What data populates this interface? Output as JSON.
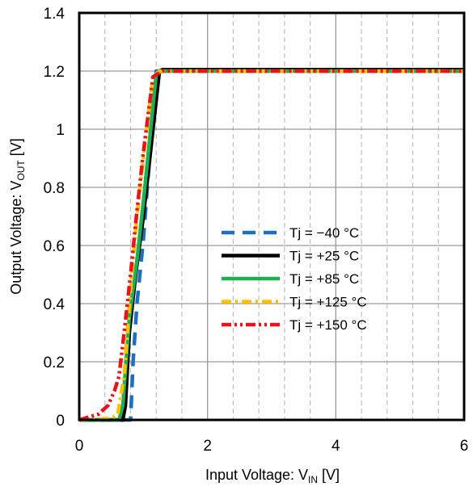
{
  "chart_data": {
    "type": "line",
    "xlabel": {
      "main": "Input Voltage: V",
      "sub": "IN",
      "unit": " [V]"
    },
    "ylabel": {
      "main": "Output Voltage: V",
      "sub": "OUT",
      "unit": " [V]"
    },
    "xlim": [
      0,
      6
    ],
    "ylim": [
      0,
      1.4
    ],
    "x_ticks": [
      "0",
      "2",
      "4",
      "6"
    ],
    "y_ticks": [
      "0",
      "0.2",
      "0.4",
      "0.6",
      "0.8",
      "1",
      "1.2",
      "1.4"
    ],
    "grid": {
      "major": true,
      "minor_x": true
    },
    "legend_position": "center-right",
    "series": [
      {
        "name": "Tj = −40 °C",
        "color": "#1f6fbf",
        "dash": "dash",
        "x": [
          0,
          0.74,
          0.8,
          0.84,
          0.9,
          1.0,
          1.2,
          1.3,
          6.0
        ],
        "y": [
          0,
          0,
          0,
          0.2,
          0.4,
          0.62,
          1.2,
          1.2,
          1.2
        ]
      },
      {
        "name": "Tj = +25 °C",
        "color": "#000000",
        "dash": "solid",
        "x": [
          0,
          0.68,
          0.72,
          0.78,
          0.88,
          1.0,
          1.25,
          1.3,
          6.0
        ],
        "y": [
          0,
          0,
          0.05,
          0.3,
          0.5,
          0.7,
          1.2,
          1.205,
          1.205
        ]
      },
      {
        "name": "Tj = +85 °C",
        "color": "#1fae54",
        "dash": "solid",
        "x": [
          0,
          0.62,
          0.68,
          0.78,
          0.9,
          1.0,
          1.2,
          1.3,
          6.0
        ],
        "y": [
          0,
          0,
          0.05,
          0.35,
          0.55,
          0.75,
          1.19,
          1.2,
          1.2
        ]
      },
      {
        "name": "Tj = +125 °C",
        "color": "#ffc000",
        "dash": "dashdot",
        "x": [
          0,
          0.5,
          0.6,
          0.7,
          0.8,
          0.9,
          1.0,
          1.15,
          1.25,
          6.0
        ],
        "y": [
          0,
          0.005,
          0.02,
          0.15,
          0.45,
          0.7,
          0.9,
          1.18,
          1.2,
          1.2
        ]
      },
      {
        "name": "Tj = +150 °C",
        "color": "#e8141b",
        "dash": "dashdotdot",
        "x": [
          0,
          0.3,
          0.45,
          0.55,
          0.62,
          0.7,
          0.8,
          0.9,
          1.0,
          1.15,
          1.3,
          6.0
        ],
        "y": [
          0,
          0.02,
          0.05,
          0.1,
          0.15,
          0.3,
          0.5,
          0.72,
          0.92,
          1.18,
          1.2,
          1.2
        ]
      }
    ]
  }
}
